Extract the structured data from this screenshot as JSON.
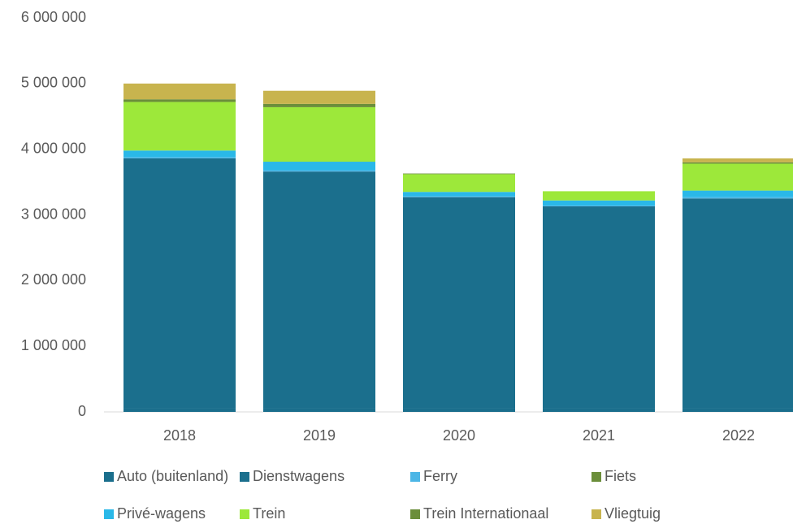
{
  "chart_data": {
    "type": "stacked_bar",
    "categories": [
      "2018",
      "2019",
      "2020",
      "2021",
      "2022"
    ],
    "series": [
      {
        "name": "Auto (buitenland)",
        "color": "#1a6e8c",
        "values": [
          50000,
          50000,
          50000,
          50000,
          50000
        ]
      },
      {
        "name": "Dienstwagens",
        "color": "#1b6f8d",
        "values": [
          3810000,
          3610000,
          3220000,
          3080000,
          3200000
        ]
      },
      {
        "name": "Ferry",
        "color": "#4cb6e6",
        "values": [
          20000,
          20000,
          10000,
          10000,
          20000
        ]
      },
      {
        "name": "Fiets",
        "color": "#6b8e3a",
        "values": [
          0,
          0,
          0,
          0,
          0
        ]
      },
      {
        "name": "Privé-wagens",
        "color": "#2ab8e8",
        "values": [
          100000,
          130000,
          70000,
          80000,
          100000
        ]
      },
      {
        "name": "Trein",
        "color": "#9de83a",
        "values": [
          740000,
          830000,
          270000,
          140000,
          410000
        ]
      },
      {
        "name": "Trein Internationaal",
        "color": "#6b8e3a",
        "values": [
          40000,
          50000,
          10000,
          0,
          20000
        ]
      },
      {
        "name": "Vliegtuig",
        "color": "#c8b44e",
        "values": [
          240000,
          200000,
          0,
          0,
          60000
        ]
      }
    ],
    "ylim": [
      0,
      6000000
    ],
    "yticks": [
      0,
      {
        "value": 1000000,
        "label": "1 000 000"
      },
      {
        "value": 2000000,
        "label": "2 000 000"
      },
      {
        "value": 3000000,
        "label": "3 000 000"
      },
      {
        "value": 4000000,
        "label": "4 000 000"
      },
      {
        "value": 5000000,
        "label": "5 000 000"
      },
      {
        "value": 6000000,
        "label": "6 000 000"
      }
    ],
    "grid": false,
    "legend": "bottom"
  }
}
